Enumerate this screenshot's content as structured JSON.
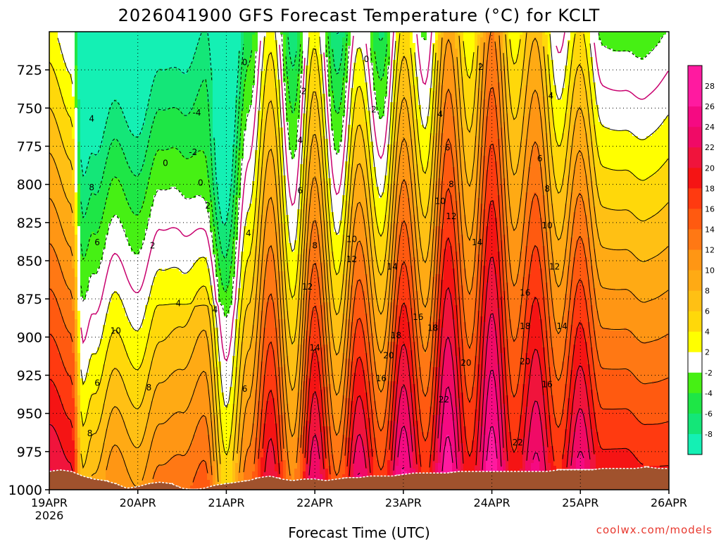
{
  "chart_data": {
    "type": "heatmap",
    "title": "2026041900 GFS Forecast Temperature (°C) for KCLT",
    "xlabel": "Forecast Time (UTC)",
    "ylabel": "",
    "credit": "coolwx.com/models",
    "x_ticks": [
      "19APR",
      "20APR",
      "21APR",
      "22APR",
      "23APR",
      "24APR",
      "25APR",
      "26APR"
    ],
    "x_sub": "2026",
    "y_ticks": [
      725,
      750,
      775,
      800,
      825,
      850,
      875,
      900,
      925,
      950,
      975,
      1000
    ],
    "ylim": [
      1000,
      700
    ],
    "x_hours": [
      0,
      168
    ],
    "colorbar": {
      "ticks": [
        28,
        26,
        24,
        22,
        20,
        18,
        16,
        14,
        12,
        10,
        8,
        6,
        4,
        2,
        -2,
        -4,
        -6,
        -8
      ],
      "bins": [
        {
          "lo": 28,
          "hi": 30,
          "color": "#ff1aa0"
        },
        {
          "lo": 26,
          "hi": 28,
          "color": "#ff1aa0"
        },
        {
          "lo": 24,
          "hi": 26,
          "color": "#f50a82"
        },
        {
          "lo": 22,
          "hi": 24,
          "color": "#f00a66"
        },
        {
          "lo": 20,
          "hi": 22,
          "color": "#f0143c"
        },
        {
          "lo": 18,
          "hi": 20,
          "color": "#f51414"
        },
        {
          "lo": 16,
          "hi": 18,
          "color": "#ff3a10"
        },
        {
          "lo": 14,
          "hi": 16,
          "color": "#ff5a10"
        },
        {
          "lo": 12,
          "hi": 14,
          "color": "#ff7814"
        },
        {
          "lo": 10,
          "hi": 12,
          "color": "#ff9614"
        },
        {
          "lo": 8,
          "hi": 10,
          "color": "#ffaa14"
        },
        {
          "lo": 6,
          "hi": 8,
          "color": "#ffc014"
        },
        {
          "lo": 4,
          "hi": 6,
          "color": "#ffd80a"
        },
        {
          "lo": 2,
          "hi": 4,
          "color": "#ffff00"
        },
        {
          "lo": -2,
          "hi": 2,
          "color": "#ffffff"
        },
        {
          "lo": -4,
          "hi": -2,
          "color": "#46f014"
        },
        {
          "lo": -6,
          "hi": -4,
          "color": "#1ee646"
        },
        {
          "lo": -8,
          "hi": -6,
          "color": "#14e678"
        },
        {
          "lo": -10,
          "hi": -8,
          "color": "#14f0b4"
        }
      ]
    },
    "ground_color": "#a0522d",
    "zero_contour_color": "#c8006e",
    "surface_pressure": [
      [
        0,
        988
      ],
      [
        3,
        987
      ],
      [
        6,
        988
      ],
      [
        9,
        991
      ],
      [
        12,
        993
      ],
      [
        15,
        994
      ],
      [
        18,
        996
      ],
      [
        21,
        999
      ],
      [
        24,
        998
      ],
      [
        27,
        996
      ],
      [
        30,
        995
      ],
      [
        33,
        996
      ],
      [
        36,
        999
      ],
      [
        39,
        1000
      ],
      [
        42,
        999
      ],
      [
        45,
        997
      ],
      [
        48,
        996
      ],
      [
        51,
        995
      ],
      [
        54,
        994
      ],
      [
        57,
        992
      ],
      [
        60,
        991
      ],
      [
        63,
        993
      ],
      [
        66,
        994
      ],
      [
        69,
        993
      ],
      [
        72,
        993
      ],
      [
        75,
        994
      ],
      [
        78,
        993
      ],
      [
        81,
        992
      ],
      [
        84,
        992
      ],
      [
        87,
        991
      ],
      [
        90,
        991
      ],
      [
        93,
        991
      ],
      [
        96,
        990
      ],
      [
        99,
        989
      ],
      [
        102,
        989
      ],
      [
        105,
        989
      ],
      [
        108,
        989
      ],
      [
        111,
        988
      ],
      [
        114,
        988
      ],
      [
        117,
        988
      ],
      [
        120,
        988
      ],
      [
        123,
        988
      ],
      [
        126,
        988
      ],
      [
        129,
        988
      ],
      [
        132,
        988
      ],
      [
        135,
        988
      ],
      [
        138,
        987
      ],
      [
        141,
        987
      ],
      [
        144,
        987
      ],
      [
        147,
        987
      ],
      [
        150,
        986
      ],
      [
        153,
        986
      ],
      [
        156,
        986
      ],
      [
        159,
        986
      ],
      [
        162,
        985
      ],
      [
        165,
        986
      ],
      [
        168,
        986
      ]
    ],
    "surface_temps": [
      {
        "hour": 0,
        "value": 22
      },
      {
        "hour": 6,
        "value": 20
      },
      {
        "hour": 9,
        "value": 6
      },
      {
        "hour": 12,
        "value": 8
      },
      {
        "hour": 18,
        "value": 12
      },
      {
        "hour": 24,
        "value": 10
      },
      {
        "hour": 30,
        "value": 13
      },
      {
        "hour": 36,
        "value": 14
      },
      {
        "hour": 42,
        "value": 16
      },
      {
        "hour": 48,
        "value": 6
      },
      {
        "hour": 54,
        "value": 14
      },
      {
        "hour": 60,
        "value": 22
      },
      {
        "hour": 66,
        "value": 12
      },
      {
        "hour": 72,
        "value": 24
      },
      {
        "hour": 78,
        "value": 14
      },
      {
        "hour": 84,
        "value": 24
      },
      {
        "hour": 90,
        "value": 16
      },
      {
        "hour": 96,
        "value": 26
      },
      {
        "hour": 102,
        "value": 17
      },
      {
        "hour": 108,
        "value": 27
      },
      {
        "hour": 114,
        "value": 18
      },
      {
        "hour": 120,
        "value": 27
      },
      {
        "hour": 126,
        "value": 18
      },
      {
        "hour": 132,
        "value": 24
      },
      {
        "hour": 138,
        "value": 17
      },
      {
        "hour": 144,
        "value": 24
      },
      {
        "hour": 150,
        "value": 18
      },
      {
        "hour": 156,
        "value": 18
      },
      {
        "hour": 162,
        "value": 17
      },
      {
        "hour": 168,
        "value": 17
      }
    ],
    "contour_labels": [
      {
        "hour": 11.5,
        "p": 757,
        "text": "4"
      },
      {
        "hour": 11.5,
        "p": 802,
        "text": "8"
      },
      {
        "hour": 13,
        "p": 838,
        "text": "6"
      },
      {
        "hour": 11,
        "p": 963,
        "text": "8"
      },
      {
        "hour": 13,
        "p": 930,
        "text": "6"
      },
      {
        "hour": 18,
        "p": 896,
        "text": "10"
      },
      {
        "hour": 27,
        "p": 933,
        "text": "8"
      },
      {
        "hour": 28,
        "p": 840,
        "text": "2"
      },
      {
        "hour": 31.5,
        "p": 786,
        "text": "0"
      },
      {
        "hour": 35,
        "p": 878,
        "text": "4"
      },
      {
        "hour": 40,
        "p": 753,
        "text": "-4"
      },
      {
        "hour": 39,
        "p": 779,
        "text": "-2"
      },
      {
        "hour": 41,
        "p": 799,
        "text": "0"
      },
      {
        "hour": 43,
        "p": 814,
        "text": "2"
      },
      {
        "hour": 45,
        "p": 882,
        "text": "4"
      },
      {
        "hour": 54,
        "p": 832,
        "text": "4"
      },
      {
        "hour": 53,
        "p": 720,
        "text": "0"
      },
      {
        "hour": 53,
        "p": 934,
        "text": "6"
      },
      {
        "hour": 69,
        "p": 739,
        "text": "2"
      },
      {
        "hour": 68,
        "p": 771,
        "text": "4"
      },
      {
        "hour": 68,
        "p": 804,
        "text": "6"
      },
      {
        "hour": 70,
        "p": 867,
        "text": "12"
      },
      {
        "hour": 72,
        "p": 840,
        "text": "8"
      },
      {
        "hour": 72,
        "p": 907,
        "text": "14"
      },
      {
        "hour": 82,
        "p": 849,
        "text": "12"
      },
      {
        "hour": 82,
        "p": 836,
        "text": "10"
      },
      {
        "hour": 86,
        "p": 718,
        "text": "0"
      },
      {
        "hour": 88,
        "p": 751,
        "text": "2"
      },
      {
        "hour": 90,
        "p": 927,
        "text": "16"
      },
      {
        "hour": 93,
        "p": 854,
        "text": "14"
      },
      {
        "hour": 92,
        "p": 912,
        "text": "20"
      },
      {
        "hour": 94,
        "p": 899,
        "text": "18"
      },
      {
        "hour": 100,
        "p": 887,
        "text": "16"
      },
      {
        "hour": 104,
        "p": 894,
        "text": "18"
      },
      {
        "hour": 106,
        "p": 754,
        "text": "4"
      },
      {
        "hour": 108,
        "p": 776,
        "text": "6"
      },
      {
        "hour": 106,
        "p": 811,
        "text": "10"
      },
      {
        "hour": 109,
        "p": 800,
        "text": "8"
      },
      {
        "hour": 109,
        "p": 821,
        "text": "12"
      },
      {
        "hour": 107,
        "p": 941,
        "text": "22"
      },
      {
        "hour": 113,
        "p": 917,
        "text": "20"
      },
      {
        "hour": 116,
        "p": 838,
        "text": "14"
      },
      {
        "hour": 117,
        "p": 723,
        "text": "2"
      },
      {
        "hour": 129,
        "p": 871,
        "text": "16"
      },
      {
        "hour": 129,
        "p": 893,
        "text": "18"
      },
      {
        "hour": 129,
        "p": 916,
        "text": "20"
      },
      {
        "hour": 127,
        "p": 969,
        "text": "22"
      },
      {
        "hour": 136,
        "p": 742,
        "text": "4"
      },
      {
        "hour": 133,
        "p": 783,
        "text": "6"
      },
      {
        "hour": 135,
        "p": 803,
        "text": "8"
      },
      {
        "hour": 135,
        "p": 827,
        "text": "10"
      },
      {
        "hour": 137,
        "p": 854,
        "text": "12"
      },
      {
        "hour": 139,
        "p": 893,
        "text": "14"
      },
      {
        "hour": 135,
        "p": 931,
        "text": "16"
      }
    ]
  }
}
